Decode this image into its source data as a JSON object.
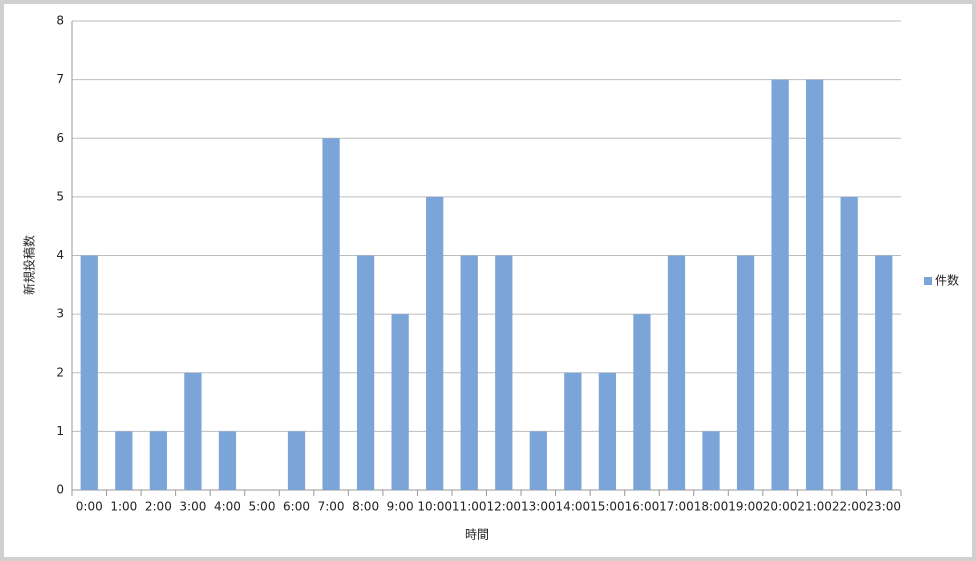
{
  "chart_data": {
    "type": "bar",
    "categories": [
      "0:00",
      "1:00",
      "2:00",
      "3:00",
      "4:00",
      "5:00",
      "6:00",
      "7:00",
      "8:00",
      "9:00",
      "10:00",
      "11:00",
      "12:00",
      "13:00",
      "14:00",
      "15:00",
      "16:00",
      "17:00",
      "18:00",
      "19:00",
      "20:00",
      "21:00",
      "22:00",
      "23:00"
    ],
    "series": [
      {
        "name": "件数",
        "color": "#7ba5d8",
        "values": [
          4,
          1,
          1,
          2,
          1,
          0,
          1,
          6,
          4,
          3,
          5,
          4,
          4,
          1,
          2,
          2,
          3,
          4,
          1,
          4,
          7,
          7,
          5,
          4
        ]
      }
    ],
    "x_label": "時間",
    "y_label": "新規投稿数",
    "ylim": [
      0,
      8
    ],
    "yticks": [
      0,
      1,
      2,
      3,
      4,
      5,
      6,
      7,
      8
    ],
    "grid": true,
    "legend": "right"
  }
}
